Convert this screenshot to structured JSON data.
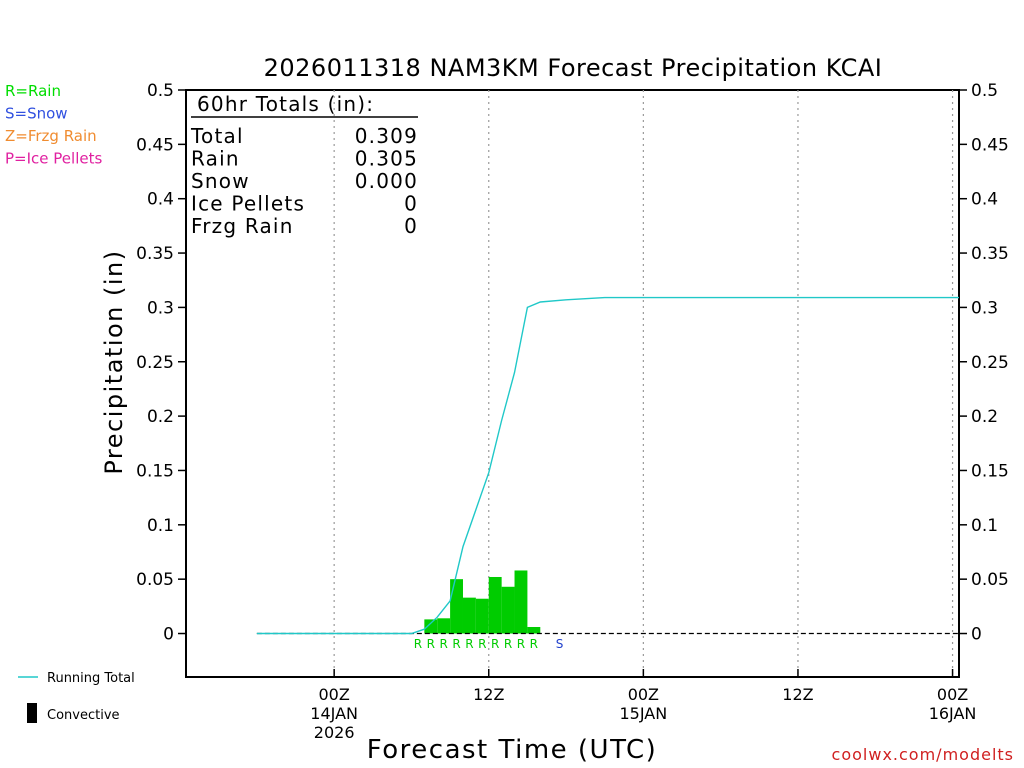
{
  "chart_data": {
    "type": "bar",
    "title": "2026011318 NAM3KM Forecast Precipitation KCAI",
    "xlabel": "Forecast Time (UTC)",
    "ylabel": "Precipitation (in)",
    "ylim": [
      -0.04,
      0.5
    ],
    "xlim_hours": [
      -5.5,
      54.5
    ],
    "y_ticks": [
      "0.5",
      "0.45",
      "0.4",
      "0.35",
      "0.3",
      "0.25",
      "0.2",
      "0.15",
      "0.1",
      "0.05",
      "0"
    ],
    "y_tick_values": [
      0.5,
      0.45,
      0.4,
      0.35,
      0.3,
      0.25,
      0.2,
      0.15,
      0.1,
      0.05,
      0
    ],
    "x_ticks": [
      {
        "hour": 6,
        "label": "00Z",
        "date": "14JAN",
        "year": "2026"
      },
      {
        "hour": 18,
        "label": "12Z",
        "date": "",
        "year": ""
      },
      {
        "hour": 30,
        "label": "00Z",
        "date": "15JAN",
        "year": ""
      },
      {
        "hour": 42,
        "label": "12Z",
        "date": "",
        "year": ""
      },
      {
        "hour": 54,
        "label": "00Z",
        "date": "16JAN",
        "year": ""
      }
    ],
    "hourly_bars": {
      "hours": [
        14,
        15,
        16,
        17,
        18,
        19,
        20,
        21,
        22
      ],
      "values": [
        0.013,
        0.014,
        0.05,
        0.033,
        0.032,
        0.052,
        0.043,
        0.058,
        0.006
      ],
      "color": "#00cc00"
    },
    "running_total": {
      "name": "Running Total",
      "color": "#20c8c8",
      "x": [
        0,
        12,
        13,
        14,
        15,
        16,
        17,
        18,
        19,
        20,
        21,
        22,
        24,
        27,
        54.5
      ],
      "y": [
        0,
        0,
        0.004,
        0.015,
        0.03,
        0.08,
        0.114,
        0.148,
        0.196,
        0.24,
        0.3,
        0.305,
        0.307,
        0.309,
        0.309
      ]
    },
    "ptype_markers": {
      "hours": [
        13,
        14,
        15,
        16,
        17,
        18,
        19,
        20,
        21,
        22,
        24
      ],
      "labels": [
        "R",
        "R",
        "R",
        "R",
        "R",
        "R",
        "R",
        "R",
        "R",
        "R",
        "S"
      ],
      "colors": [
        "#00cc00",
        "#00cc00",
        "#00cc00",
        "#00cc00",
        "#00cc00",
        "#00cc00",
        "#00cc00",
        "#00cc00",
        "#00cc00",
        "#00cc00",
        "#2040cc"
      ]
    },
    "totals_box": {
      "heading": "60hr Totals (in):",
      "rows": [
        {
          "label": "Total",
          "value": "0.309"
        },
        {
          "label": "Rain",
          "value": "0.305"
        },
        {
          "label": "Snow",
          "value": "0.000"
        },
        {
          "label": "Ice Pellets",
          "value": "0"
        },
        {
          "label": "Frzg Rain",
          "value": "0"
        }
      ]
    },
    "ptype_legend": [
      {
        "text": "R=Rain",
        "color": "#00dd00"
      },
      {
        "text": "S=Snow",
        "color": "#3050e0"
      },
      {
        "text": "Z=Frzg Rain",
        "color": "#f08c30"
      },
      {
        "text": "P=Ice Pellets",
        "color": "#e020a0"
      }
    ],
    "legend": {
      "running_total": "Running Total",
      "convective": "Convective"
    },
    "credit": "coolwx.com/modelts",
    "credit_color": "#d02020"
  }
}
